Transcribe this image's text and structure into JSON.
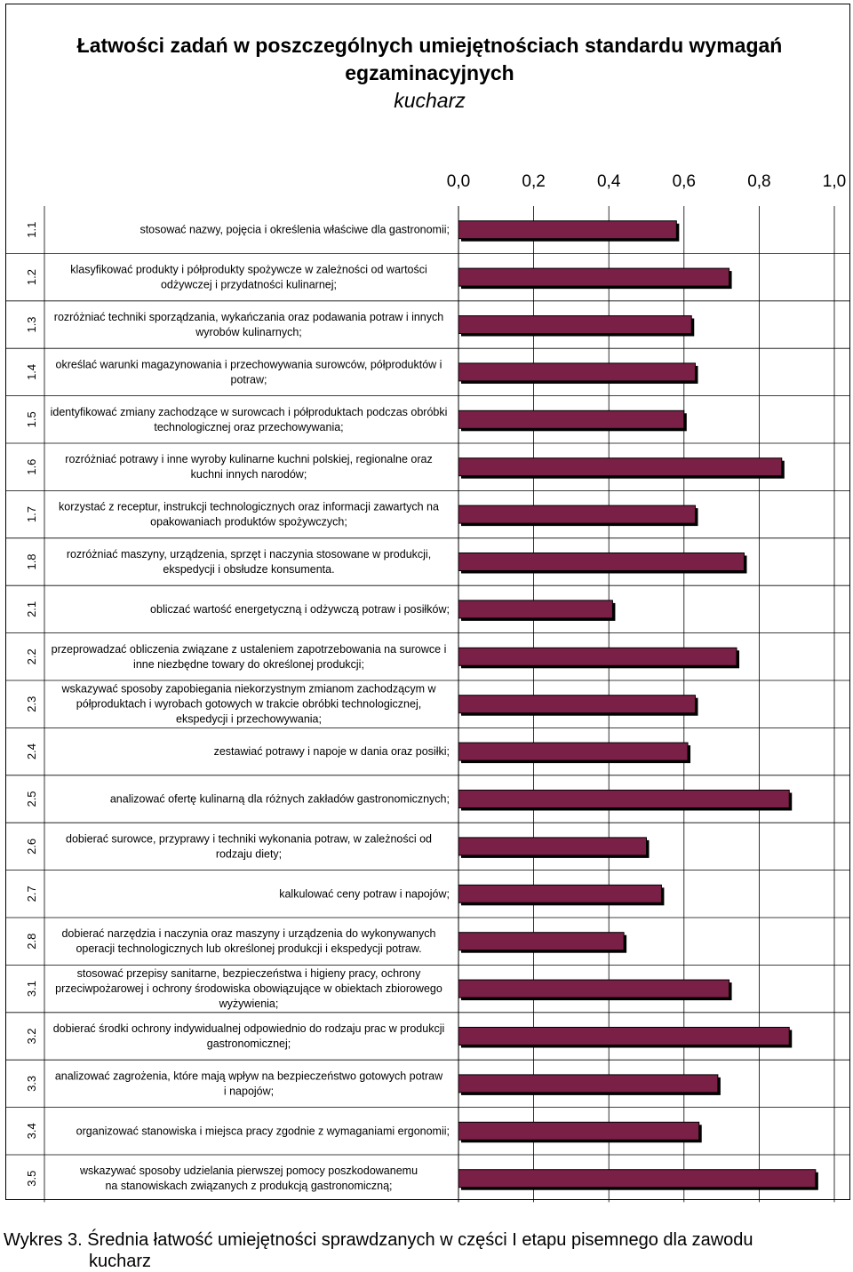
{
  "chart_data": {
    "type": "bar",
    "orientation": "horizontal",
    "title": "Łatwości zadań w poszczególnych umiejętnościach standardu wymagań egzaminacyjnych",
    "subtitle": "kucharz",
    "xlim": [
      0,
      1
    ],
    "x_ticks": [
      "0,0",
      "0,2",
      "0,4",
      "0,6",
      "0,8",
      "1,0"
    ],
    "x_tick_values": [
      0,
      0.2,
      0.4,
      0.6,
      0.8,
      1.0
    ],
    "grid": "vertical",
    "bar_color": "#7a1f45",
    "codes": [
      "1.1",
      "1.2",
      "1.3",
      "1.4",
      "1.5",
      "1.6",
      "1.7",
      "1.8",
      "2.1",
      "2.2",
      "2.3",
      "2.4",
      "2.5",
      "2.6",
      "2.7",
      "2.8",
      "3.1",
      "3.2",
      "3.3",
      "3.4",
      "3.5"
    ],
    "categories": [
      [
        "stosować nazwy, pojęcia i określenia właściwe dla gastronomii;"
      ],
      [
        "klasyfikować produkty i półprodukty spożywcze w zależności od wartości",
        "odżywczej i przydatności kulinarnej;"
      ],
      [
        "rozróżniać techniki sporządzania, wykańczania oraz podawania potraw i innych",
        "wyrobów kulinarnych;"
      ],
      [
        "określać warunki magazynowania i przechowywania surowców, półproduktów i",
        "potraw;"
      ],
      [
        "identyfikować zmiany zachodzące w surowcach i półproduktach podczas obróbki",
        "technologicznej oraz przechowywania;"
      ],
      [
        "rozróżniać potrawy i inne wyroby kulinarne kuchni polskiej, regionalne oraz",
        "kuchni innych narodów;"
      ],
      [
        "korzystać z receptur, instrukcji technologicznych oraz informacji zawartych na",
        "opakowaniach produktów spożywczych;"
      ],
      [
        "rozróżniać maszyny, urządzenia, sprzęt i naczynia stosowane w produkcji,",
        "ekspedycji i obsłudze konsumenta."
      ],
      [
        "obliczać wartość energetyczną i odżywczą potraw i posiłków;"
      ],
      [
        "przeprowadzać obliczenia związane z ustaleniem zapotrzebowania na surowce i",
        "inne niezbędne towary do określonej produkcji;"
      ],
      [
        "wskazywać sposoby zapobiegania niekorzystnym zmianom zachodzącym w",
        "półproduktach i wyrobach gotowych w trakcie obróbki technologicznej,",
        "ekspedycji i przechowywania;"
      ],
      [
        "zestawiać potrawy i napoje w dania oraz posiłki;"
      ],
      [
        "analizować ofertę kulinarną dla różnych zakładów gastronomicznych;"
      ],
      [
        "dobierać surowce, przyprawy i techniki wykonania potraw, w zależności od",
        "rodzaju diety;"
      ],
      [
        "kalkulować ceny potraw i napojów;"
      ],
      [
        "dobierać narzędzia i naczynia oraz maszyny i urządzenia do wykonywanych",
        "operacji technologicznych lub określonej produkcji i ekspedycji potraw."
      ],
      [
        "stosować przepisy sanitarne, bezpieczeństwa i higieny pracy, ochrony",
        "przeciwpożarowej i ochrony środowiska obowiązujące w obiektach zbiorowego",
        "wyżywienia;"
      ],
      [
        "dobierać środki ochrony indywidualnej odpowiednio do rodzaju prac w produkcji",
        "gastronomicznej;"
      ],
      [
        "analizować zagrożenia, które mają wpływ na bezpieczeństwo gotowych potraw",
        "i napojów;"
      ],
      [
        "organizować stanowiska i miejsca pracy  zgodnie z wymaganiami ergonomii;"
      ],
      [
        "wskazywać sposoby udzielania pierwszej pomocy poszkodowanemu",
        "na stanowiskach związanych z produkcją gastronomiczną;"
      ]
    ],
    "values": [
      0.58,
      0.72,
      0.62,
      0.63,
      0.6,
      0.86,
      0.63,
      0.76,
      0.41,
      0.74,
      0.63,
      0.61,
      0.88,
      0.5,
      0.54,
      0.44,
      0.72,
      0.88,
      0.69,
      0.64,
      0.95
    ]
  },
  "caption": {
    "line1": "Wykres 3. Średnia łatwość umiejętności sprawdzanych w części I etapu pisemnego dla zawodu",
    "line2": "kucharz"
  }
}
